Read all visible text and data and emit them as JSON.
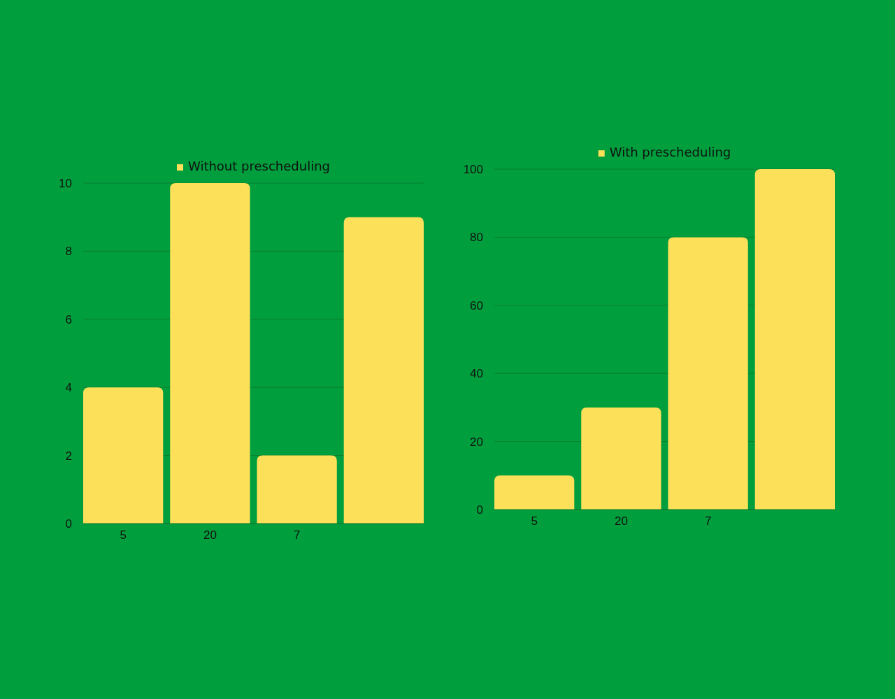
{
  "chart_data": [
    {
      "type": "bar",
      "categories": [
        "5",
        "20",
        "7",
        null
      ],
      "series": [
        {
          "name": "Without prescheduling",
          "color": "#fde05a",
          "values": [
            4,
            10,
            2,
            9
          ]
        }
      ],
      "ylim": [
        0,
        10
      ],
      "yticks": [
        0,
        2,
        4,
        6,
        8,
        10
      ],
      "grid": "y",
      "legend": "top"
    },
    {
      "type": "bar",
      "categories": [
        "5",
        "20",
        "7",
        null
      ],
      "series": [
        {
          "name": "With prescheduling",
          "color": "#fde05a",
          "values": [
            10,
            30,
            80,
            100
          ]
        }
      ],
      "ylim": [
        0,
        100
      ],
      "yticks": [
        0,
        20,
        40,
        60,
        80,
        100
      ],
      "grid": "y",
      "legend": "top"
    }
  ]
}
